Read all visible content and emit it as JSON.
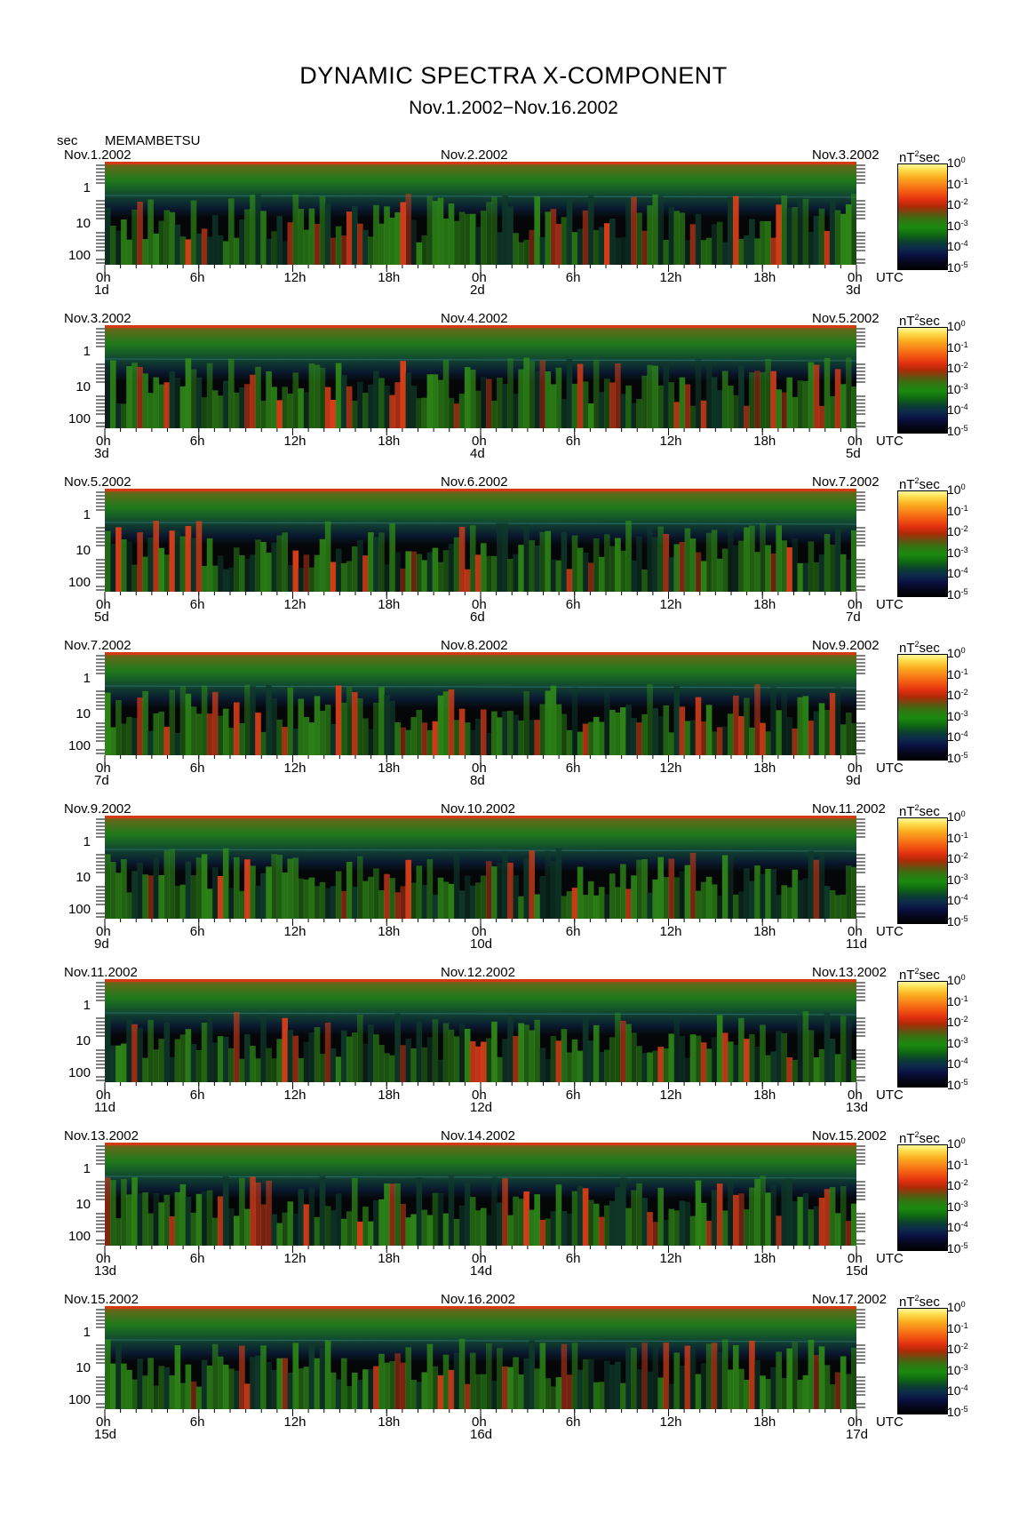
{
  "header": {
    "title": "DYNAMIC SPECTRA X-COMPONENT",
    "subtitle": "Nov.1.2002−Nov.16.2002",
    "axis_unit": "sec",
    "station": "MEMAMBETSU"
  },
  "colorbar": {
    "unit_prefix": "nT",
    "unit_exp": "2",
    "unit_suffix": "sec",
    "ticks": [
      {
        "base": "10",
        "exp": "0"
      },
      {
        "base": "10",
        "exp": "-1"
      },
      {
        "base": "10",
        "exp": "-2"
      },
      {
        "base": "10",
        "exp": "-3"
      },
      {
        "base": "10",
        "exp": "-4"
      },
      {
        "base": "10",
        "exp": "-5"
      }
    ]
  },
  "panels": [
    {
      "date_left": "Nov.1.2002",
      "date_mid": "Nov.2.2002",
      "date_right": "Nov.3.2002",
      "day_left": "1d",
      "day_mid": "2d",
      "day_right": "3d"
    },
    {
      "date_left": "Nov.3.2002",
      "date_mid": "Nov.4.2002",
      "date_right": "Nov.5.2002",
      "day_left": "3d",
      "day_mid": "4d",
      "day_right": "5d"
    },
    {
      "date_left": "Nov.5.2002",
      "date_mid": "Nov.6.2002",
      "date_right": "Nov.7.2002",
      "day_left": "5d",
      "day_mid": "6d",
      "day_right": "7d"
    },
    {
      "date_left": "Nov.7.2002",
      "date_mid": "Nov.8.2002",
      "date_right": "Nov.9.2002",
      "day_left": "7d",
      "day_mid": "8d",
      "day_right": "9d"
    },
    {
      "date_left": "Nov.9.2002",
      "date_mid": "Nov.10.2002",
      "date_right": "Nov.11.2002",
      "day_left": "9d",
      "day_mid": "10d",
      "day_right": "11d"
    },
    {
      "date_left": "Nov.11.2002",
      "date_mid": "Nov.12.2002",
      "date_right": "Nov.13.2002",
      "day_left": "11d",
      "day_mid": "12d",
      "day_right": "13d"
    },
    {
      "date_left": "Nov.13.2002",
      "date_mid": "Nov.14.2002",
      "date_right": "Nov.15.2002",
      "day_left": "13d",
      "day_mid": "14d",
      "day_right": "15d"
    },
    {
      "date_left": "Nov.15.2002",
      "date_mid": "Nov.16.2002",
      "date_right": "Nov.17.2002",
      "day_left": "15d",
      "day_mid": "16d",
      "day_right": "17d"
    }
  ],
  "x_ticks": [
    "0h",
    "6h",
    "12h",
    "18h",
    "0h",
    "6h",
    "12h",
    "18h",
    "0h"
  ],
  "x_unit": "UTC",
  "y_ticks": [
    "1",
    "10",
    "100"
  ],
  "colors": {
    "bg": "#050608",
    "noise_band": "#1f6a1a",
    "top_edge": "#d23a10",
    "low_freq": "#2f8a18",
    "hot": "#e0401a"
  },
  "chart_data": {
    "type": "heatmap",
    "title": "DYNAMIC SPECTRA X-COMPONENT",
    "subtitle": "Nov.1.2002−Nov.16.2002",
    "station": "MEMAMBETSU",
    "ylabel": "sec",
    "y_scale": "log",
    "y_ticks": [
      1,
      10,
      100
    ],
    "x_ticks": [
      "0h",
      "6h",
      "12h",
      "18h",
      "0h",
      "6h",
      "12h",
      "18h",
      "0h"
    ],
    "x_unit": "UTC",
    "colorbar_unit": "nT^2 sec",
    "colorbar_range": [
      1e-05,
      1
    ],
    "panel_intervals": [
      [
        "Nov.1.2002",
        "Nov.3.2002"
      ],
      [
        "Nov.3.2002",
        "Nov.5.2002"
      ],
      [
        "Nov.5.2002",
        "Nov.7.2002"
      ],
      [
        "Nov.7.2002",
        "Nov.9.2002"
      ],
      [
        "Nov.9.2002",
        "Nov.11.2002"
      ],
      [
        "Nov.11.2002",
        "Nov.13.2002"
      ],
      [
        "Nov.13.2002",
        "Nov.15.2002"
      ],
      [
        "Nov.15.2002",
        "Nov.17.2002"
      ]
    ]
  }
}
